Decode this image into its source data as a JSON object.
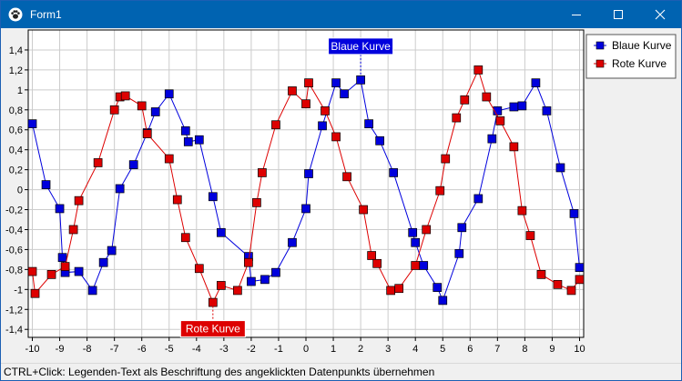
{
  "window": {
    "title": "Form1",
    "accent": "#0063b1"
  },
  "icons": {
    "app": "paw-icon",
    "minimize": "minimize-icon",
    "maximize": "maximize-icon",
    "close": "close-icon"
  },
  "status": {
    "text": "CTRL+Click: Legenden-Text als Beschriftung des angeklickten Datenpunkts übernehmen"
  },
  "chart_data": {
    "type": "line",
    "title": "",
    "xlabel": "",
    "ylabel": "",
    "xlim": [
      -10.15,
      10.15
    ],
    "ylim": [
      -1.48,
      1.6
    ],
    "xticks": [
      "-10",
      "-9",
      "-8",
      "-7",
      "-6",
      "-5",
      "-4",
      "-3",
      "-2",
      "-1",
      "0",
      "1",
      "2",
      "3",
      "4",
      "5",
      "6",
      "7",
      "8",
      "9",
      "10"
    ],
    "yticks": [
      "-1,4",
      "-1,2",
      "-1",
      "-0,8",
      "-0,6",
      "-0,4",
      "-0,2",
      "0",
      "0,2",
      "0,4",
      "0,6",
      "0,8",
      "1",
      "1,2",
      "1,4"
    ],
    "grid": true,
    "legend_position": "top-right",
    "series": [
      {
        "name": "Blaue Kurve",
        "color": "#0000dd",
        "x": [
          -10,
          -9.5,
          -9,
          -8.9,
          -8.8,
          -8.3,
          -7.8,
          -7.4,
          -7.1,
          -6.8,
          -6.3,
          -5.8,
          -5.5,
          -5,
          -4.4,
          -4.3,
          -3.9,
          -3.4,
          -3.1,
          -2.1,
          -2,
          -1.5,
          -1.1,
          -0.5,
          0,
          0.1,
          0.6,
          1.1,
          1.4,
          2,
          2.3,
          2.7,
          3.2,
          3.9,
          4,
          4.3,
          4.8,
          5,
          5.6,
          5.7,
          6.3,
          6.8,
          7,
          7.6,
          7.9,
          8.4,
          8.8,
          9.3,
          9.8,
          10
        ],
        "y": [
          0.66,
          0.05,
          -0.19,
          -0.68,
          -0.83,
          -0.82,
          -1.01,
          -0.73,
          -0.61,
          0.01,
          0.25,
          0.57,
          0.78,
          0.96,
          0.59,
          0.48,
          0.5,
          -0.07,
          -0.43,
          -0.67,
          -0.92,
          -0.9,
          -0.83,
          -0.53,
          -0.19,
          0.16,
          0.64,
          1.07,
          0.96,
          1.1,
          0.66,
          0.49,
          0.17,
          -0.43,
          -0.53,
          -0.76,
          -0.98,
          -1.11,
          -0.64,
          -0.38,
          -0.09,
          0.51,
          0.79,
          0.83,
          0.84,
          1.07,
          0.79,
          0.22,
          -0.24,
          -0.78
        ]
      },
      {
        "name": "Rote Kurve",
        "color": "#dd0000",
        "x": [
          -10,
          -9.9,
          -9.3,
          -8.8,
          -8.5,
          -8.3,
          -7.6,
          -7,
          -6.8,
          -6.6,
          -6,
          -5.8,
          -5,
          -4.7,
          -4.4,
          -3.9,
          -3.4,
          -3.1,
          -2.5,
          -2.1,
          -1.8,
          -1.6,
          -1.1,
          -0.5,
          0,
          0.1,
          0.7,
          1.1,
          1.5,
          2.1,
          2.4,
          2.6,
          3.1,
          3.4,
          4,
          4.4,
          4.9,
          5.1,
          5.5,
          5.8,
          6.3,
          6.6,
          7.1,
          7.6,
          7.9,
          8.2,
          8.6,
          9.2,
          9.7,
          10
        ],
        "y": [
          -0.82,
          -1.04,
          -0.85,
          -0.77,
          -0.4,
          -0.11,
          0.27,
          0.8,
          0.93,
          0.94,
          0.84,
          0.56,
          0.31,
          -0.1,
          -0.48,
          -0.79,
          -1.13,
          -0.96,
          -1.01,
          -0.73,
          -0.13,
          0.17,
          0.65,
          0.99,
          0.86,
          1.07,
          0.79,
          0.53,
          0.13,
          -0.2,
          -0.66,
          -0.74,
          -1.01,
          -0.99,
          -0.76,
          -0.4,
          -0.01,
          0.31,
          0.72,
          0.9,
          1.2,
          0.93,
          0.69,
          0.43,
          -0.21,
          -0.46,
          -0.85,
          -0.95,
          -1.01,
          -0.9
        ]
      }
    ],
    "annotations": [
      {
        "text": "Blaue Kurve",
        "series": 0,
        "x": 2,
        "y": 1.1,
        "bg": "#0000dd",
        "anchor": "above"
      },
      {
        "text": "Rote Kurve",
        "series": 1,
        "x": -3.4,
        "y": -1.13,
        "bg": "#dd0000",
        "anchor": "below"
      }
    ]
  }
}
